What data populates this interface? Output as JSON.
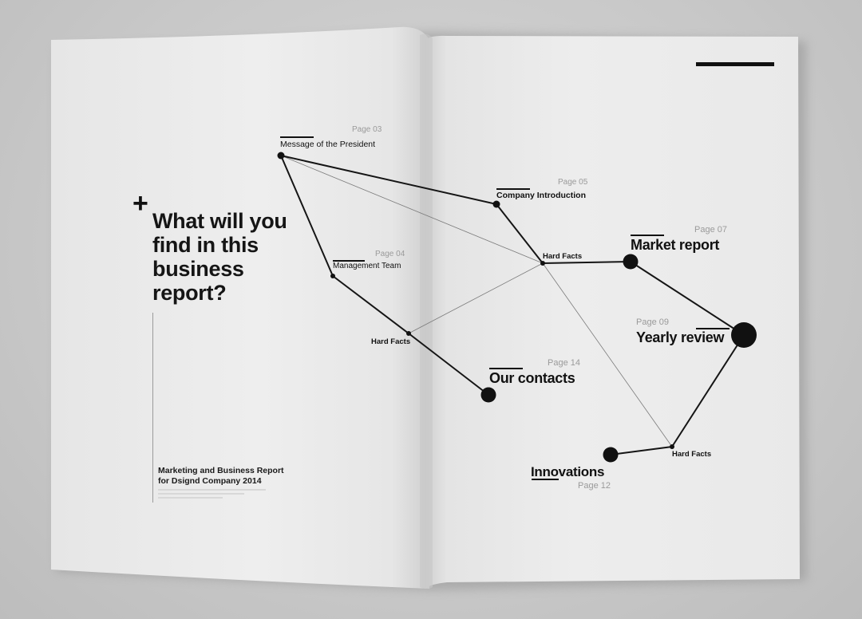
{
  "cover": {
    "plus": "+",
    "headline": [
      "What will you",
      "find in this",
      "business",
      "report?"
    ],
    "footer_line1": "Marketing and Business Report",
    "footer_line2": "for Dsignd Company 2014"
  },
  "nodes": {
    "president": {
      "label": "Message of the President",
      "page": "Page 03"
    },
    "company": {
      "label": "Company Introduction",
      "page": "Page 05"
    },
    "management": {
      "label": "Management Team",
      "page": "Page 04"
    },
    "hard_facts_left": {
      "label": "Hard Facts"
    },
    "hard_facts_center": {
      "label": "Hard Facts"
    },
    "market": {
      "label": "Market report",
      "page": "Page 07"
    },
    "yearly": {
      "label": "Yearly review",
      "page": "Page 09"
    },
    "contacts": {
      "label": "Our contacts",
      "page": "Page 14"
    },
    "innovations": {
      "label": "Innovations",
      "page": "Page 12"
    },
    "hard_facts_bottom": {
      "label": "Hard Facts"
    }
  },
  "colors": {
    "ink": "#111111",
    "page_number": "#9a9a9a",
    "background": "#c9c9c9",
    "paper": "#ececec"
  }
}
